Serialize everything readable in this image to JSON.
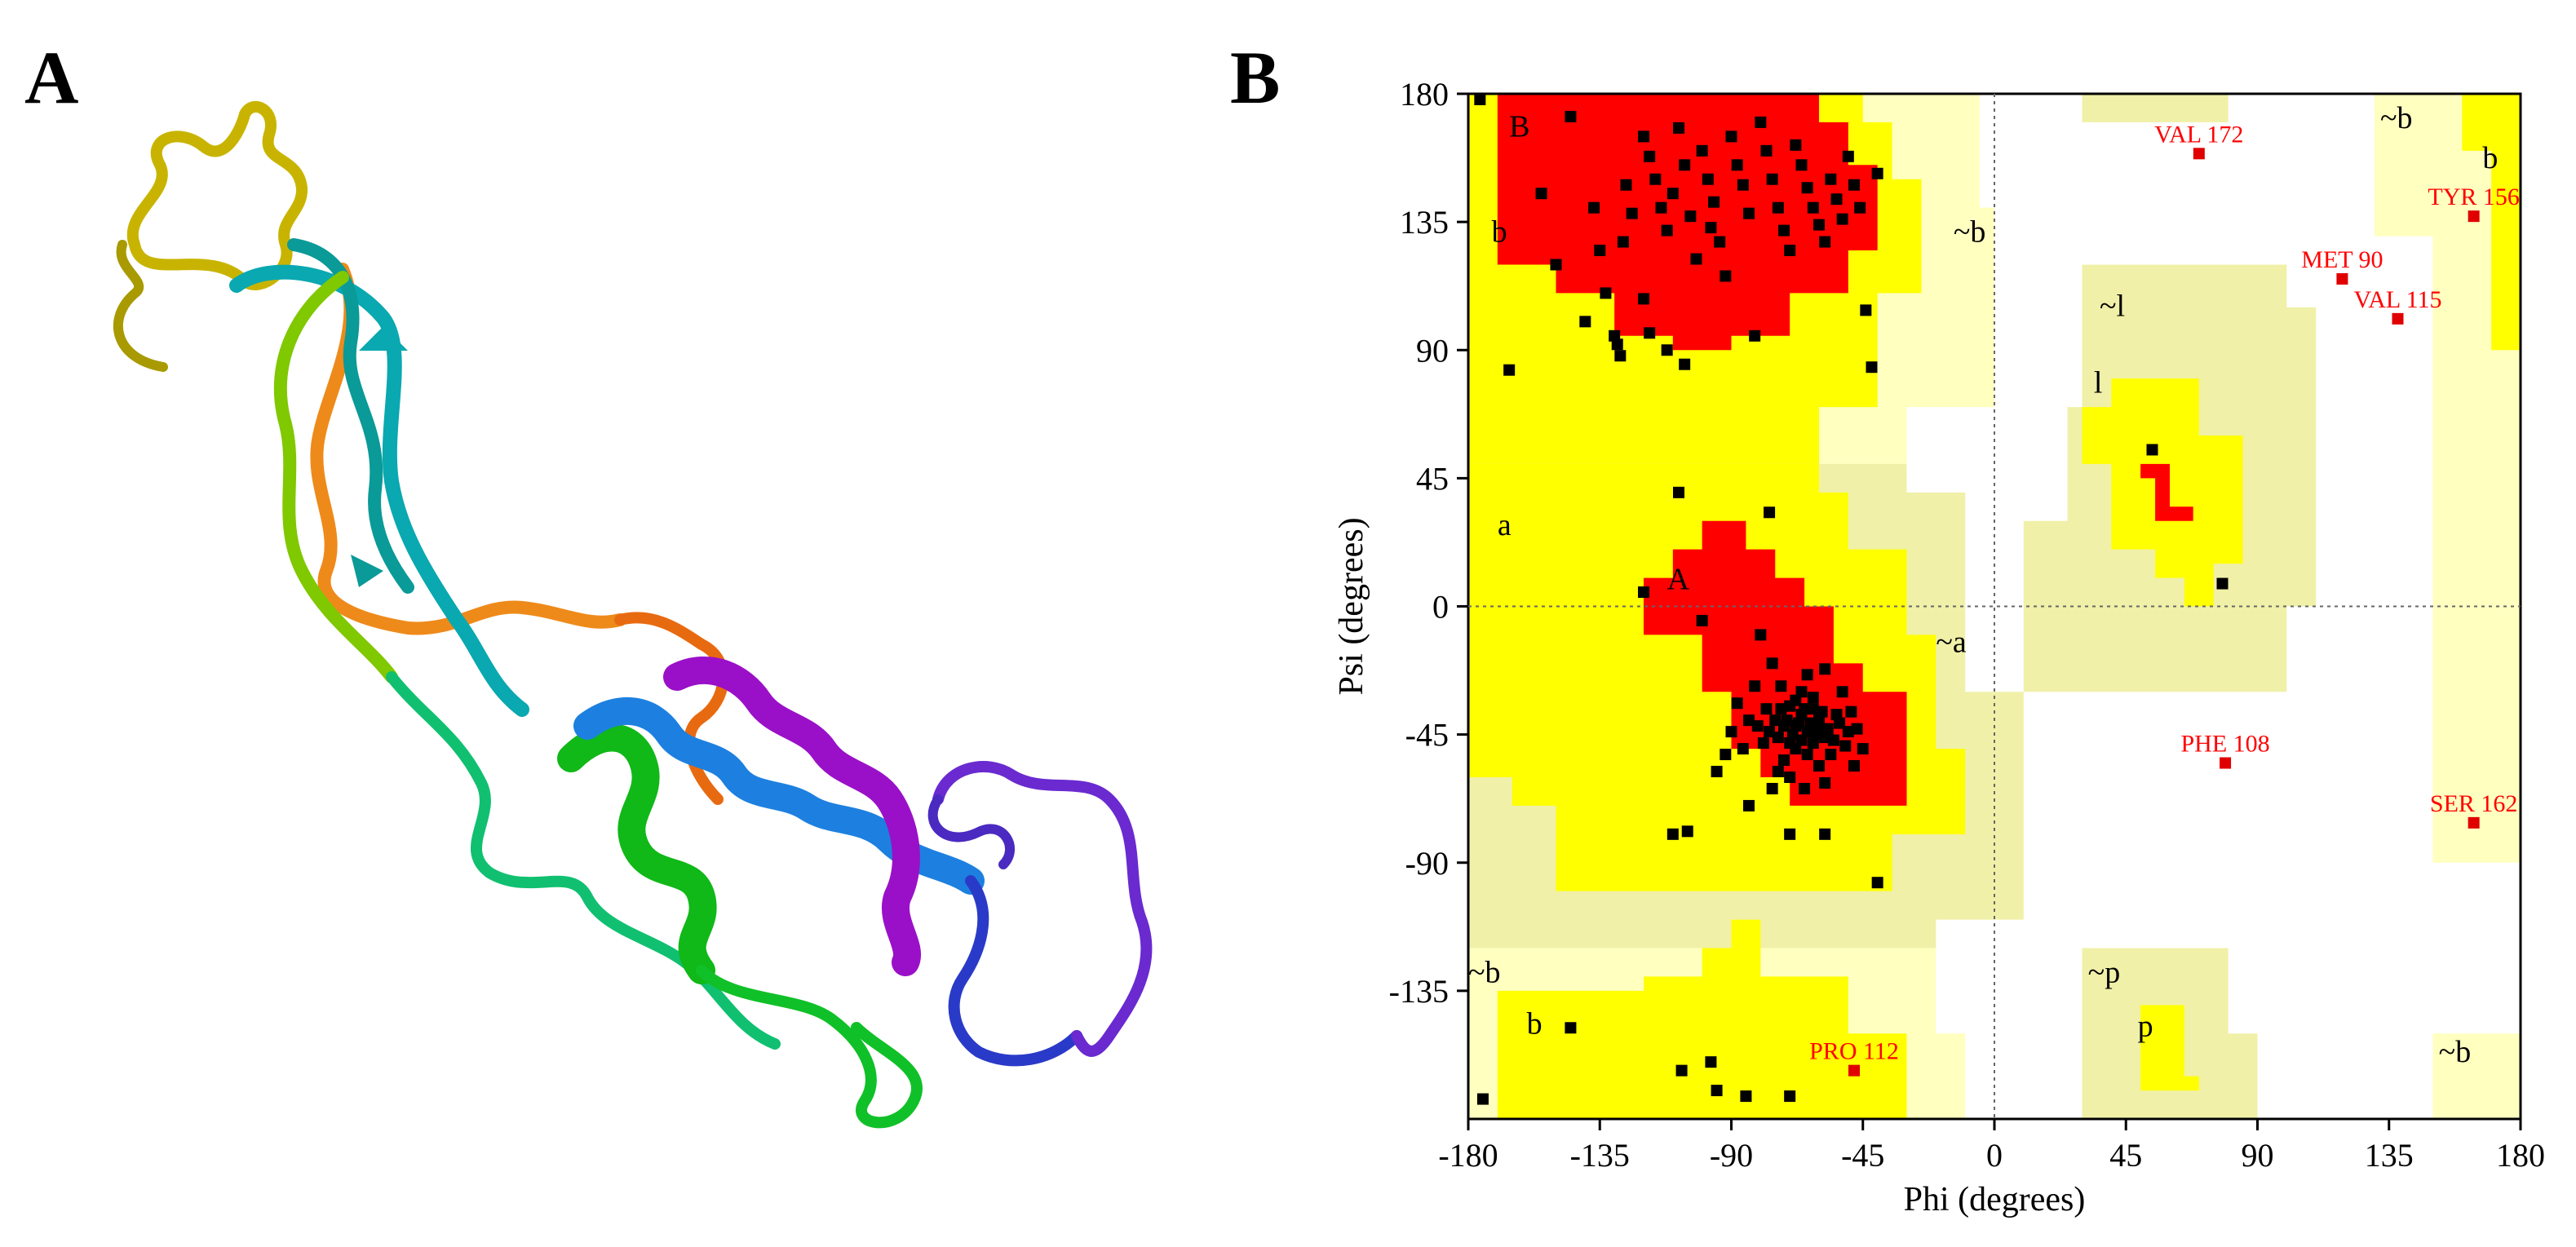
{
  "panels": {
    "a": {
      "label": "A"
    },
    "b": {
      "label": "B"
    }
  },
  "colors": {
    "core": "#ff0000",
    "allowed": "#ffff00",
    "generous": "#f0f0a8",
    "disallowed_light": "#ffffc0",
    "point": "#000000",
    "outlier": "#e00000"
  },
  "protein": {
    "icon": "ribbon-cartoon",
    "segments": [
      {
        "color": "#c8b400"
      },
      {
        "color": "#ee8a1a"
      },
      {
        "color": "#e86a10"
      },
      {
        "color": "#0aa8b0"
      },
      {
        "color": "#80c800"
      },
      {
        "color": "#10c070"
      },
      {
        "color": "#10b818"
      },
      {
        "color": "#1d80e0"
      },
      {
        "color": "#9a10c8"
      },
      {
        "color": "#2a3ac8"
      },
      {
        "color": "#6a2ad0"
      }
    ]
  },
  "chart_data": {
    "type": "scatter",
    "xlabel": "Phi (degrees)",
    "ylabel": "Psi (degrees)",
    "xlim": [
      -180,
      180
    ],
    "ylim": [
      -180,
      180
    ],
    "xticks": [
      "-180",
      "-135",
      "-90",
      "-45",
      "0",
      "45",
      "90",
      "135",
      "180"
    ],
    "yticks": [
      "180",
      "135",
      "90",
      "45",
      "0",
      "-45",
      "-90",
      "-135"
    ],
    "region_labels": [
      {
        "text": "B",
        "phi": -166,
        "psi": 165
      },
      {
        "text": "b",
        "phi": -172,
        "psi": 128
      },
      {
        "text": "~b",
        "phi": -14,
        "psi": 128
      },
      {
        "text": "a",
        "phi": -170,
        "psi": 25
      },
      {
        "text": "A",
        "phi": -112,
        "psi": 6
      },
      {
        "text": "~a",
        "phi": -20,
        "psi": -16
      },
      {
        "text": "~l",
        "phi": 36,
        "psi": 102
      },
      {
        "text": "l",
        "phi": 34,
        "psi": 75
      },
      {
        "text": "~b",
        "phi": 132,
        "psi": 168
      },
      {
        "text": "b",
        "phi": 167,
        "psi": 154
      },
      {
        "text": "~b",
        "phi": -180,
        "psi": -132
      },
      {
        "text": "b",
        "phi": -160,
        "psi": -150
      },
      {
        "text": "~p",
        "phi": 32,
        "psi": -132
      },
      {
        "text": "p",
        "phi": 49,
        "psi": -151
      },
      {
        "text": "~b",
        "phi": 152,
        "psi": -160
      }
    ],
    "outliers": [
      {
        "label": "VAL 172",
        "phi": 70,
        "psi": 159
      },
      {
        "label": "TYR 156",
        "phi": 164,
        "psi": 137
      },
      {
        "label": "MET 90",
        "phi": 119,
        "psi": 115
      },
      {
        "label": "VAL 115",
        "phi": 138,
        "psi": 101
      },
      {
        "label": "PHE 108",
        "phi": 79,
        "psi": -55
      },
      {
        "label": "SER 162",
        "phi": 164,
        "psi": -76
      },
      {
        "label": "PRO 112",
        "phi": -48,
        "psi": -163
      }
    ],
    "points": [
      [
        -176,
        178
      ],
      [
        -166,
        83
      ],
      [
        -155,
        145
      ],
      [
        -145,
        172
      ],
      [
        -137,
        140
      ],
      [
        -135,
        125
      ],
      [
        -133,
        110
      ],
      [
        -130,
        95
      ],
      [
        -128,
        88
      ],
      [
        -126,
        148
      ],
      [
        -124,
        138
      ],
      [
        -120,
        165
      ],
      [
        -118,
        158
      ],
      [
        -116,
        150
      ],
      [
        -114,
        140
      ],
      [
        -112,
        132
      ],
      [
        -110,
        145
      ],
      [
        -108,
        168
      ],
      [
        -106,
        155
      ],
      [
        -104,
        137
      ],
      [
        -102,
        122
      ],
      [
        -100,
        160
      ],
      [
        -98,
        150
      ],
      [
        -96,
        142
      ],
      [
        -94,
        128
      ],
      [
        -92,
        116
      ],
      [
        -90,
        165
      ],
      [
        -88,
        155
      ],
      [
        -86,
        148
      ],
      [
        -84,
        138
      ],
      [
        -82,
        95
      ],
      [
        -80,
        170
      ],
      [
        -78,
        160
      ],
      [
        -76,
        150
      ],
      [
        -74,
        140
      ],
      [
        -72,
        132
      ],
      [
        -70,
        125
      ],
      [
        -68,
        162
      ],
      [
        -66,
        155
      ],
      [
        -64,
        147
      ],
      [
        -62,
        140
      ],
      [
        -60,
        134
      ],
      [
        -58,
        128
      ],
      [
        -56,
        150
      ],
      [
        -54,
        143
      ],
      [
        -52,
        136
      ],
      [
        -50,
        158
      ],
      [
        -48,
        148
      ],
      [
        -46,
        140
      ],
      [
        -44,
        104
      ],
      [
        -42,
        84
      ],
      [
        -40,
        152
      ],
      [
        -120,
        108
      ],
      [
        -118,
        96
      ],
      [
        -112,
        90
      ],
      [
        -106,
        85
      ],
      [
        -140,
        100
      ],
      [
        -150,
        120
      ],
      [
        -127,
        128
      ],
      [
        -97,
        133
      ],
      [
        -129,
        92
      ],
      [
        -108,
        40
      ],
      [
        -77,
        33
      ],
      [
        -120,
        5
      ],
      [
        -100,
        -5
      ],
      [
        -80,
        -10
      ],
      [
        -76,
        -20
      ],
      [
        -73,
        -28
      ],
      [
        -70,
        -35
      ],
      [
        -68,
        -42
      ],
      [
        -66,
        -38
      ],
      [
        -64,
        -44
      ],
      [
        -62,
        -48
      ],
      [
        -60,
        -40
      ],
      [
        -58,
        -46
      ],
      [
        -56,
        -52
      ],
      [
        -54,
        -38
      ],
      [
        -52,
        -30
      ],
      [
        -50,
        -44
      ],
      [
        -48,
        -56
      ],
      [
        -78,
        -36
      ],
      [
        -74,
        -46
      ],
      [
        -72,
        -54
      ],
      [
        -70,
        -60
      ],
      [
        -68,
        -50
      ],
      [
        -66,
        -30
      ],
      [
        -64,
        -24
      ],
      [
        -62,
        -32
      ],
      [
        -60,
        -56
      ],
      [
        -58,
        -62
      ],
      [
        -82,
        -28
      ],
      [
        -84,
        -40
      ],
      [
        -86,
        -50
      ],
      [
        -88,
        -34
      ],
      [
        -90,
        -44
      ],
      [
        -71,
        -40
      ],
      [
        -69,
        -45
      ],
      [
        -67,
        -41
      ],
      [
        -65,
        -36
      ],
      [
        -63,
        -41
      ],
      [
        -61,
        -45
      ],
      [
        -59,
        -37
      ],
      [
        -57,
        -43
      ],
      [
        -72,
        -42
      ],
      [
        -70,
        -48
      ],
      [
        -68,
        -33
      ],
      [
        -66,
        -47
      ],
      [
        -64,
        -52
      ],
      [
        -62,
        -36
      ],
      [
        -60,
        -42
      ],
      [
        -75,
        -40
      ],
      [
        -73,
        -36
      ],
      [
        -77,
        -44
      ],
      [
        -79,
        -48
      ],
      [
        -81,
        -42
      ],
      [
        -55,
        -47
      ],
      [
        -53,
        -41
      ],
      [
        -51,
        -49
      ],
      [
        -49,
        -37
      ],
      [
        -47,
        -43
      ],
      [
        -45,
        -50
      ],
      [
        -74,
        -58
      ],
      [
        -76,
        -64
      ],
      [
        -65,
        -64
      ],
      [
        -58,
        -22
      ],
      [
        -92,
        -52
      ],
      [
        -95,
        -58
      ],
      [
        -110,
        -80
      ],
      [
        -105,
        -79
      ],
      [
        -84,
        -70
      ],
      [
        -70,
        -80
      ],
      [
        -58,
        -80
      ],
      [
        -40,
        -97
      ],
      [
        -145,
        -148
      ],
      [
        -107,
        -163
      ],
      [
        -97,
        -160
      ],
      [
        -95,
        -170
      ],
      [
        -85,
        -172
      ],
      [
        -70,
        -172
      ],
      [
        -175,
        -173
      ],
      [
        54,
        55
      ],
      [
        78,
        8
      ]
    ]
  }
}
